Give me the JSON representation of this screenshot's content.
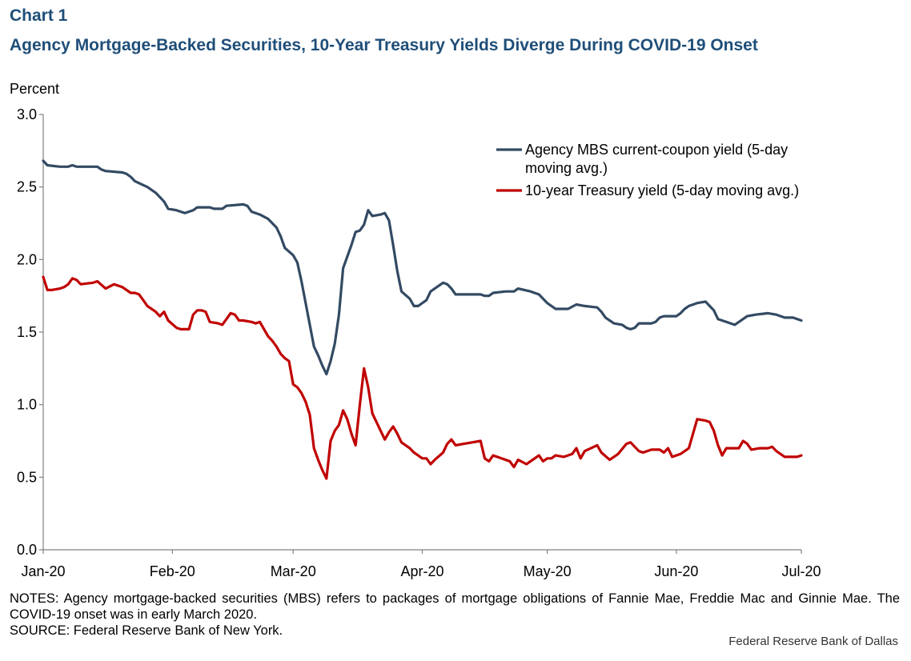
{
  "header": {
    "chart_number": "Chart 1",
    "title": "Agency Mortgage-Backed Securities, 10-Year Treasury Yields Diverge During COVID-19 Onset"
  },
  "footer": {
    "notes": "NOTES: Agency mortgage-backed securities (MBS) refers to packages of mortgage obligations of Fannie Mae, Freddie Mac and Ginnie Mae. The COVID-19 onset was in early March 2020.",
    "source": "SOURCE: Federal Reserve Bank of New York.",
    "credit": "Federal Reserve Bank of Dallas"
  },
  "chart_data": {
    "type": "line",
    "title": "Agency Mortgage-Backed Securities, 10-Year Treasury Yields Diverge During COVID-19 Onset",
    "xlabel": "",
    "ylabel": "Percent",
    "ylim": [
      0,
      3
    ],
    "xlim": [
      "2020-01-01",
      "2020-07-01"
    ],
    "y_ticks": [
      "0.0",
      "0.5",
      "1.0",
      "1.5",
      "2.0",
      "2.5",
      "3.0"
    ],
    "x_ticks": [
      {
        "date": "2020-01-01",
        "label": "Jan-20"
      },
      {
        "date": "2020-02-01",
        "label": "Feb-20"
      },
      {
        "date": "2020-03-01",
        "label": "Mar-20"
      },
      {
        "date": "2020-04-01",
        "label": "Apr-20"
      },
      {
        "date": "2020-05-01",
        "label": "May-20"
      },
      {
        "date": "2020-06-01",
        "label": "Jun-20"
      },
      {
        "date": "2020-07-01",
        "label": "Jul-20"
      }
    ],
    "grid": false,
    "legend_position": "top-right",
    "series": [
      {
        "name": "Agency MBS current-coupon yield (5-day moving avg.)",
        "color": "#334a63",
        "points": [
          [
            "2020-01-01",
            2.68
          ],
          [
            "2020-01-02",
            2.65
          ],
          [
            "2020-01-05",
            2.64
          ],
          [
            "2020-01-07",
            2.64
          ],
          [
            "2020-01-08",
            2.65
          ],
          [
            "2020-01-09",
            2.64
          ],
          [
            "2020-01-14",
            2.64
          ],
          [
            "2020-01-15",
            2.62
          ],
          [
            "2020-01-16",
            2.61
          ],
          [
            "2020-01-20",
            2.6
          ],
          [
            "2020-01-21",
            2.59
          ],
          [
            "2020-01-22",
            2.57
          ],
          [
            "2020-01-23",
            2.54
          ],
          [
            "2020-01-26",
            2.5
          ],
          [
            "2020-01-28",
            2.46
          ],
          [
            "2020-01-30",
            2.4
          ],
          [
            "2020-01-31",
            2.35
          ],
          [
            "2020-02-02",
            2.34
          ],
          [
            "2020-02-04",
            2.32
          ],
          [
            "2020-02-06",
            2.34
          ],
          [
            "2020-02-07",
            2.36
          ],
          [
            "2020-02-10",
            2.36
          ],
          [
            "2020-02-11",
            2.35
          ],
          [
            "2020-02-13",
            2.35
          ],
          [
            "2020-02-14",
            2.37
          ],
          [
            "2020-02-18",
            2.38
          ],
          [
            "2020-02-19",
            2.37
          ],
          [
            "2020-02-20",
            2.33
          ],
          [
            "2020-02-22",
            2.31
          ],
          [
            "2020-02-24",
            2.28
          ],
          [
            "2020-02-26",
            2.22
          ],
          [
            "2020-02-27",
            2.16
          ],
          [
            "2020-02-28",
            2.08
          ],
          [
            "2020-03-01",
            2.03
          ],
          [
            "2020-03-02",
            1.98
          ],
          [
            "2020-03-03",
            1.85
          ],
          [
            "2020-03-04",
            1.7
          ],
          [
            "2020-03-05",
            1.55
          ],
          [
            "2020-03-06",
            1.4
          ],
          [
            "2020-03-07",
            1.34
          ],
          [
            "2020-03-08",
            1.27
          ],
          [
            "2020-03-09",
            1.21
          ],
          [
            "2020-03-10",
            1.3
          ],
          [
            "2020-03-11",
            1.42
          ],
          [
            "2020-03-12",
            1.62
          ],
          [
            "2020-03-13",
            1.94
          ],
          [
            "2020-03-14",
            2.02
          ],
          [
            "2020-03-15",
            2.1
          ],
          [
            "2020-03-16",
            2.19
          ],
          [
            "2020-03-17",
            2.2
          ],
          [
            "2020-03-18",
            2.24
          ],
          [
            "2020-03-19",
            2.34
          ],
          [
            "2020-03-20",
            2.3
          ],
          [
            "2020-03-22",
            2.31
          ],
          [
            "2020-03-23",
            2.32
          ],
          [
            "2020-03-24",
            2.27
          ],
          [
            "2020-03-25",
            2.1
          ],
          [
            "2020-03-26",
            1.92
          ],
          [
            "2020-03-27",
            1.78
          ],
          [
            "2020-03-29",
            1.73
          ],
          [
            "2020-03-30",
            1.68
          ],
          [
            "2020-03-31",
            1.68
          ],
          [
            "2020-04-02",
            1.72
          ],
          [
            "2020-04-03",
            1.78
          ],
          [
            "2020-04-04",
            1.8
          ],
          [
            "2020-04-06",
            1.84
          ],
          [
            "2020-04-07",
            1.83
          ],
          [
            "2020-04-08",
            1.8
          ],
          [
            "2020-04-09",
            1.76
          ],
          [
            "2020-04-13",
            1.76
          ],
          [
            "2020-04-15",
            1.76
          ],
          [
            "2020-04-16",
            1.75
          ],
          [
            "2020-04-17",
            1.75
          ],
          [
            "2020-04-18",
            1.77
          ],
          [
            "2020-04-21",
            1.78
          ],
          [
            "2020-04-23",
            1.78
          ],
          [
            "2020-04-24",
            1.8
          ],
          [
            "2020-04-27",
            1.78
          ],
          [
            "2020-04-29",
            1.76
          ],
          [
            "2020-05-01",
            1.7
          ],
          [
            "2020-05-03",
            1.66
          ],
          [
            "2020-05-06",
            1.66
          ],
          [
            "2020-05-08",
            1.69
          ],
          [
            "2020-05-10",
            1.68
          ],
          [
            "2020-05-13",
            1.67
          ],
          [
            "2020-05-14",
            1.64
          ],
          [
            "2020-05-15",
            1.6
          ],
          [
            "2020-05-17",
            1.56
          ],
          [
            "2020-05-19",
            1.55
          ],
          [
            "2020-05-20",
            1.53
          ],
          [
            "2020-05-21",
            1.52
          ],
          [
            "2020-05-22",
            1.53
          ],
          [
            "2020-05-23",
            1.56
          ],
          [
            "2020-05-26",
            1.56
          ],
          [
            "2020-05-27",
            1.57
          ],
          [
            "2020-05-28",
            1.6
          ],
          [
            "2020-05-29",
            1.61
          ],
          [
            "2020-06-01",
            1.61
          ],
          [
            "2020-06-02",
            1.63
          ],
          [
            "2020-06-03",
            1.66
          ],
          [
            "2020-06-04",
            1.68
          ],
          [
            "2020-06-06",
            1.7
          ],
          [
            "2020-06-08",
            1.71
          ],
          [
            "2020-06-10",
            1.65
          ],
          [
            "2020-06-11",
            1.59
          ],
          [
            "2020-06-13",
            1.57
          ],
          [
            "2020-06-15",
            1.55
          ],
          [
            "2020-06-16",
            1.57
          ],
          [
            "2020-06-18",
            1.61
          ],
          [
            "2020-06-20",
            1.62
          ],
          [
            "2020-06-23",
            1.63
          ],
          [
            "2020-06-25",
            1.62
          ],
          [
            "2020-06-27",
            1.6
          ],
          [
            "2020-06-29",
            1.6
          ],
          [
            "2020-07-01",
            1.58
          ]
        ]
      },
      {
        "name": "10-year Treasury yield (5-day moving avg.)",
        "color": "#c00000",
        "points": [
          [
            "2020-01-01",
            1.88
          ],
          [
            "2020-01-02",
            1.79
          ],
          [
            "2020-01-03",
            1.79
          ],
          [
            "2020-01-05",
            1.8
          ],
          [
            "2020-01-06",
            1.81
          ],
          [
            "2020-01-07",
            1.83
          ],
          [
            "2020-01-08",
            1.87
          ],
          [
            "2020-01-09",
            1.86
          ],
          [
            "2020-01-10",
            1.83
          ],
          [
            "2020-01-13",
            1.84
          ],
          [
            "2020-01-14",
            1.85
          ],
          [
            "2020-01-16",
            1.8
          ],
          [
            "2020-01-18",
            1.83
          ],
          [
            "2020-01-20",
            1.81
          ],
          [
            "2020-01-22",
            1.77
          ],
          [
            "2020-01-23",
            1.77
          ],
          [
            "2020-01-24",
            1.76
          ],
          [
            "2020-01-25",
            1.72
          ],
          [
            "2020-01-26",
            1.68
          ],
          [
            "2020-01-28",
            1.64
          ],
          [
            "2020-01-29",
            1.61
          ],
          [
            "2020-01-30",
            1.64
          ],
          [
            "2020-01-31",
            1.58
          ],
          [
            "2020-02-02",
            1.53
          ],
          [
            "2020-02-03",
            1.52
          ],
          [
            "2020-02-05",
            1.52
          ],
          [
            "2020-02-06",
            1.62
          ],
          [
            "2020-02-07",
            1.65
          ],
          [
            "2020-02-08",
            1.65
          ],
          [
            "2020-02-09",
            1.64
          ],
          [
            "2020-02-10",
            1.57
          ],
          [
            "2020-02-12",
            1.56
          ],
          [
            "2020-02-13",
            1.55
          ],
          [
            "2020-02-14",
            1.59
          ],
          [
            "2020-02-15",
            1.63
          ],
          [
            "2020-02-16",
            1.62
          ],
          [
            "2020-02-17",
            1.58
          ],
          [
            "2020-02-18",
            1.58
          ],
          [
            "2020-02-20",
            1.57
          ],
          [
            "2020-02-21",
            1.56
          ],
          [
            "2020-02-22",
            1.57
          ],
          [
            "2020-02-23",
            1.52
          ],
          [
            "2020-02-24",
            1.47
          ],
          [
            "2020-02-25",
            1.44
          ],
          [
            "2020-02-26",
            1.4
          ],
          [
            "2020-02-27",
            1.35
          ],
          [
            "2020-02-28",
            1.32
          ],
          [
            "2020-02-29",
            1.3
          ],
          [
            "2020-03-01",
            1.14
          ],
          [
            "2020-03-02",
            1.12
          ],
          [
            "2020-03-03",
            1.08
          ],
          [
            "2020-03-04",
            1.02
          ],
          [
            "2020-03-05",
            0.93
          ],
          [
            "2020-03-06",
            0.7
          ],
          [
            "2020-03-07",
            0.62
          ],
          [
            "2020-03-08",
            0.55
          ],
          [
            "2020-03-09",
            0.49
          ],
          [
            "2020-03-10",
            0.75
          ],
          [
            "2020-03-11",
            0.82
          ],
          [
            "2020-03-12",
            0.86
          ],
          [
            "2020-03-13",
            0.96
          ],
          [
            "2020-03-14",
            0.9
          ],
          [
            "2020-03-15",
            0.8
          ],
          [
            "2020-03-16",
            0.72
          ],
          [
            "2020-03-17",
            1.0
          ],
          [
            "2020-03-18",
            1.25
          ],
          [
            "2020-03-19",
            1.12
          ],
          [
            "2020-03-20",
            0.94
          ],
          [
            "2020-03-21",
            0.88
          ],
          [
            "2020-03-22",
            0.82
          ],
          [
            "2020-03-23",
            0.76
          ],
          [
            "2020-03-24",
            0.81
          ],
          [
            "2020-03-25",
            0.85
          ],
          [
            "2020-03-26",
            0.8
          ],
          [
            "2020-03-27",
            0.74
          ],
          [
            "2020-03-29",
            0.7
          ],
          [
            "2020-03-30",
            0.67
          ],
          [
            "2020-03-31",
            0.65
          ],
          [
            "2020-04-01",
            0.63
          ],
          [
            "2020-04-02",
            0.63
          ],
          [
            "2020-04-03",
            0.59
          ],
          [
            "2020-04-04",
            0.62
          ],
          [
            "2020-04-06",
            0.67
          ],
          [
            "2020-04-07",
            0.73
          ],
          [
            "2020-04-08",
            0.76
          ],
          [
            "2020-04-09",
            0.72
          ],
          [
            "2020-04-11",
            0.73
          ],
          [
            "2020-04-13",
            0.74
          ],
          [
            "2020-04-15",
            0.75
          ],
          [
            "2020-04-16",
            0.63
          ],
          [
            "2020-04-17",
            0.61
          ],
          [
            "2020-04-18",
            0.65
          ],
          [
            "2020-04-20",
            0.63
          ],
          [
            "2020-04-22",
            0.61
          ],
          [
            "2020-04-23",
            0.57
          ],
          [
            "2020-04-24",
            0.62
          ],
          [
            "2020-04-26",
            0.59
          ],
          [
            "2020-04-28",
            0.63
          ],
          [
            "2020-04-29",
            0.65
          ],
          [
            "2020-04-30",
            0.61
          ],
          [
            "2020-05-01",
            0.63
          ],
          [
            "2020-05-02",
            0.63
          ],
          [
            "2020-05-03",
            0.65
          ],
          [
            "2020-05-05",
            0.64
          ],
          [
            "2020-05-07",
            0.66
          ],
          [
            "2020-05-08",
            0.7
          ],
          [
            "2020-05-09",
            0.63
          ],
          [
            "2020-05-10",
            0.68
          ],
          [
            "2020-05-13",
            0.72
          ],
          [
            "2020-05-14",
            0.67
          ],
          [
            "2020-05-16",
            0.62
          ],
          [
            "2020-05-18",
            0.66
          ],
          [
            "2020-05-20",
            0.73
          ],
          [
            "2020-05-21",
            0.74
          ],
          [
            "2020-05-22",
            0.71
          ],
          [
            "2020-05-23",
            0.68
          ],
          [
            "2020-05-24",
            0.67
          ],
          [
            "2020-05-26",
            0.69
          ],
          [
            "2020-05-28",
            0.69
          ],
          [
            "2020-05-29",
            0.67
          ],
          [
            "2020-05-30",
            0.7
          ],
          [
            "2020-05-31",
            0.64
          ],
          [
            "2020-06-02",
            0.66
          ],
          [
            "2020-06-04",
            0.7
          ],
          [
            "2020-06-05",
            0.8
          ],
          [
            "2020-06-06",
            0.9
          ],
          [
            "2020-06-08",
            0.89
          ],
          [
            "2020-06-09",
            0.88
          ],
          [
            "2020-06-10",
            0.82
          ],
          [
            "2020-06-11",
            0.72
          ],
          [
            "2020-06-12",
            0.65
          ],
          [
            "2020-06-13",
            0.7
          ],
          [
            "2020-06-15",
            0.7
          ],
          [
            "2020-06-16",
            0.7
          ],
          [
            "2020-06-17",
            0.75
          ],
          [
            "2020-06-18",
            0.73
          ],
          [
            "2020-06-19",
            0.69
          ],
          [
            "2020-06-21",
            0.7
          ],
          [
            "2020-06-23",
            0.7
          ],
          [
            "2020-06-24",
            0.71
          ],
          [
            "2020-06-25",
            0.68
          ],
          [
            "2020-06-26",
            0.66
          ],
          [
            "2020-06-27",
            0.64
          ],
          [
            "2020-06-29",
            0.64
          ],
          [
            "2020-06-30",
            0.64
          ],
          [
            "2020-07-01",
            0.65
          ]
        ]
      }
    ]
  }
}
